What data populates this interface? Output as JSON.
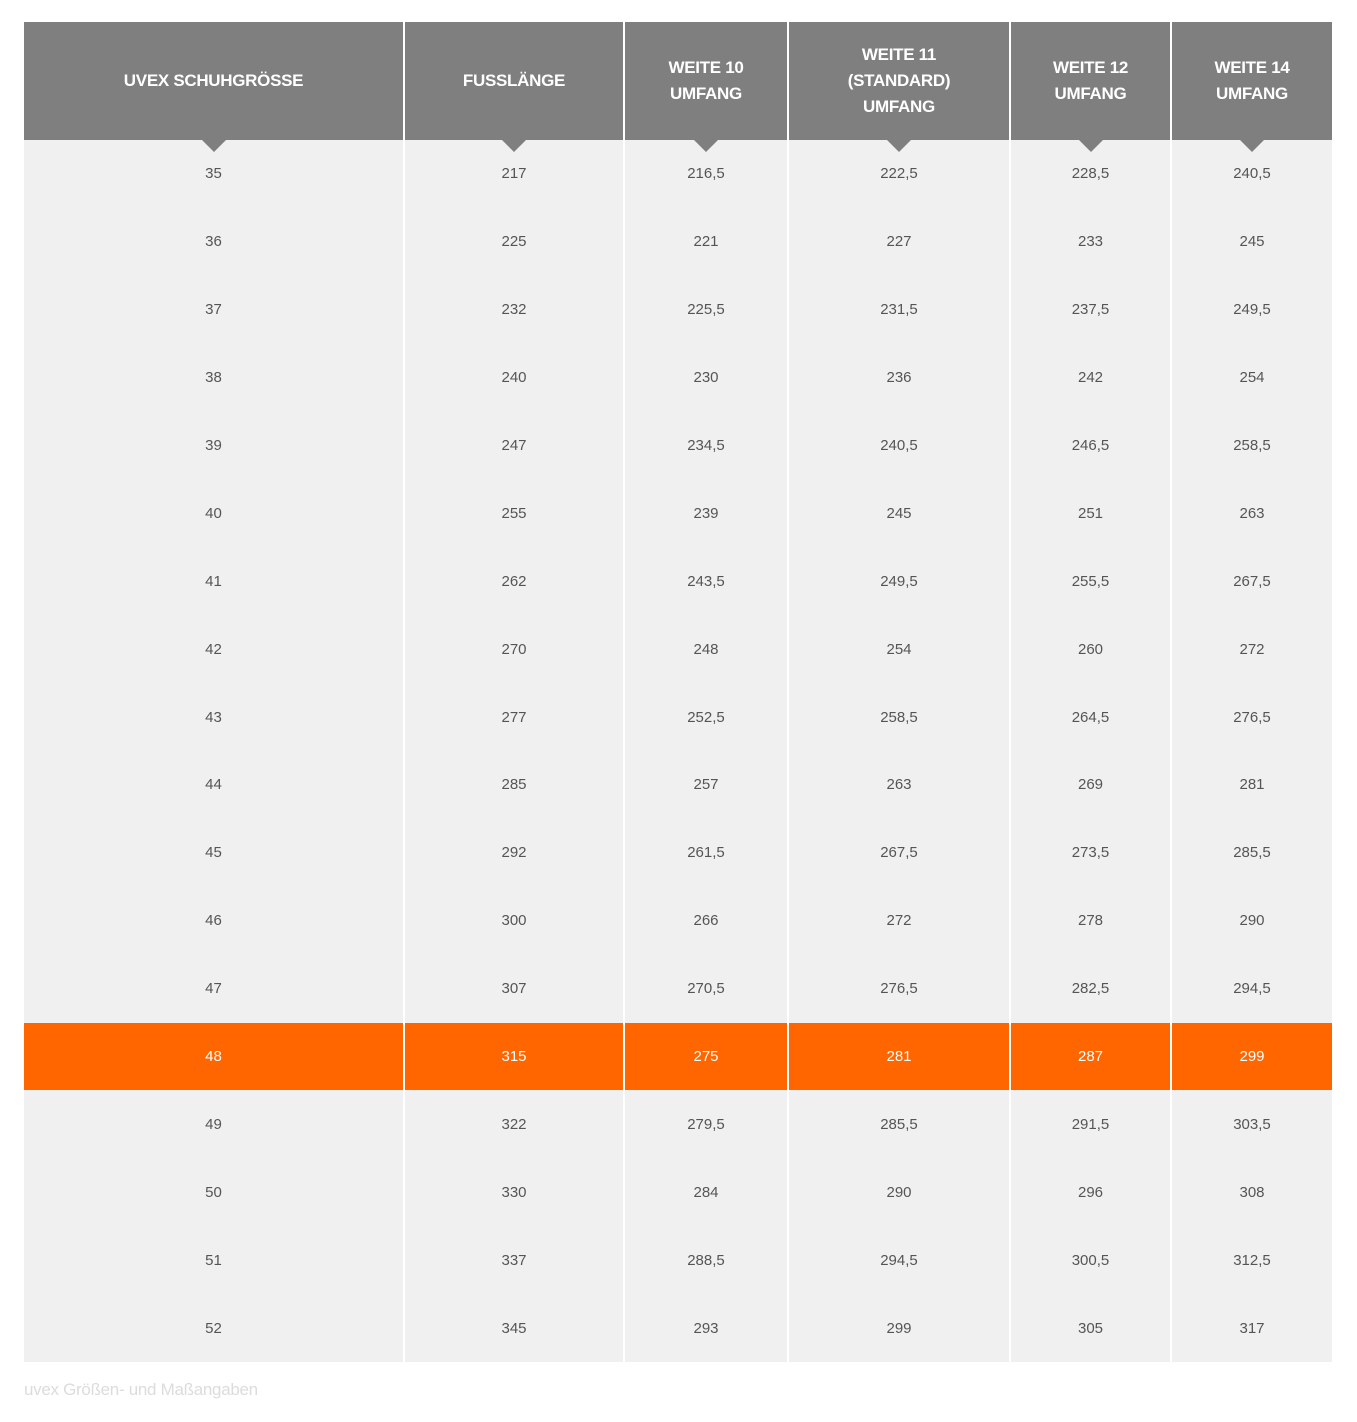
{
  "table": {
    "headers": [
      "UVEX SCHUHGRÖSSE",
      "FUSSLÄNGE",
      "WEITE 10\nUMFANG",
      "WEITE 11\n(STANDARD)\nUMFANG",
      "WEITE 12\nUMFANG",
      "WEITE 14\nUMFANG"
    ],
    "highlight_row": 13,
    "highlight_color": "#ff6600",
    "header_color": "#7f7f7f",
    "rows": [
      [
        "35",
        "217",
        "216,5",
        "222,5",
        "228,5",
        "240,5"
      ],
      [
        "36",
        "225",
        "221",
        "227",
        "233",
        "245"
      ],
      [
        "37",
        "232",
        "225,5",
        "231,5",
        "237,5",
        "249,5"
      ],
      [
        "38",
        "240",
        "230",
        "236",
        "242",
        "254"
      ],
      [
        "39",
        "247",
        "234,5",
        "240,5",
        "246,5",
        "258,5"
      ],
      [
        "40",
        "255",
        "239",
        "245",
        "251",
        "263"
      ],
      [
        "41",
        "262",
        "243,5",
        "249,5",
        "255,5",
        "267,5"
      ],
      [
        "42",
        "270",
        "248",
        "254",
        "260",
        "272"
      ],
      [
        "43",
        "277",
        "252,5",
        "258,5",
        "264,5",
        "276,5"
      ],
      [
        "44",
        "285",
        "257",
        "263",
        "269",
        "281"
      ],
      [
        "45",
        "292",
        "261,5",
        "267,5",
        "273,5",
        "285,5"
      ],
      [
        "46",
        "300",
        "266",
        "272",
        "278",
        "290"
      ],
      [
        "47",
        "307",
        "270,5",
        "276,5",
        "282,5",
        "294,5"
      ],
      [
        "48",
        "315",
        "275",
        "281",
        "287",
        "299"
      ],
      [
        "49",
        "322",
        "279,5",
        "285,5",
        "291,5",
        "303,5"
      ],
      [
        "50",
        "330",
        "284",
        "290",
        "296",
        "308"
      ],
      [
        "51",
        "337",
        "288,5",
        "294,5",
        "300,5",
        "312,5"
      ],
      [
        "52",
        "345",
        "293",
        "299",
        "305",
        "317"
      ]
    ]
  },
  "caption": "uvex Größen- und Maßangaben"
}
